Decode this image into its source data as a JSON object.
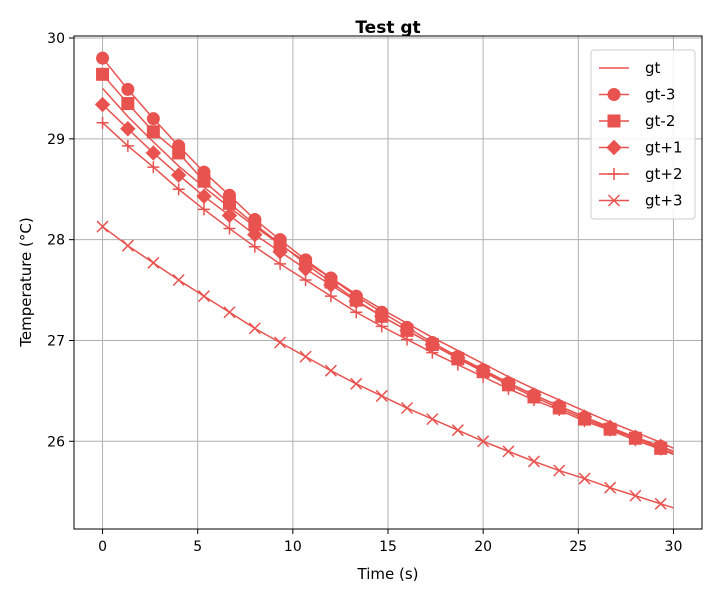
{
  "chart_data": {
    "type": "line",
    "title": "Test gt",
    "xlabel": "Time (s)",
    "ylabel": "Temperature (°C)",
    "xlim": [
      -1.5,
      31.5
    ],
    "ylim": [
      25.13,
      30.02
    ],
    "xticks": [
      0,
      5,
      10,
      15,
      20,
      25,
      30
    ],
    "yticks": [
      26,
      27,
      28,
      29,
      30
    ],
    "grid": true,
    "legend_position": "top-right",
    "line_color": "#e8524f",
    "marker_x": [
      0,
      1.33,
      2.67,
      4,
      5.33,
      6.67,
      8,
      9.33,
      10.67,
      12,
      13.33,
      14.67,
      16,
      17.33,
      18.67,
      20,
      21.33,
      22.67,
      24,
      25.33,
      26.67,
      28,
      29.33
    ],
    "series": [
      {
        "name": "gt",
        "marker": "none",
        "x": [
          0,
          1.33,
          2.67,
          4,
          5.33,
          6.67,
          8,
          9.33,
          10.67,
          12,
          13.33,
          14.67,
          16,
          17.33,
          18.67,
          20,
          21.33,
          22.67,
          24,
          25.33,
          26.67,
          28,
          29.33,
          30
        ],
        "values": [
          29.5,
          29.22,
          28.97,
          28.73,
          28.52,
          28.32,
          28.13,
          27.95,
          27.78,
          27.62,
          27.46,
          27.31,
          27.17,
          27.03,
          26.9,
          26.77,
          26.64,
          26.52,
          26.41,
          26.3,
          26.19,
          26.09,
          25.99,
          25.93
        ]
      },
      {
        "name": "gt-3",
        "marker": "circle",
        "x": [
          0,
          1.33,
          2.67,
          4,
          5.33,
          6.67,
          8,
          9.33,
          10.67,
          12,
          13.33,
          14.67,
          16,
          17.33,
          18.67,
          20,
          21.33,
          22.67,
          24,
          25.33,
          26.67,
          28,
          29.33,
          30
        ],
        "values": [
          29.8,
          29.49,
          29.2,
          28.93,
          28.67,
          28.44,
          28.2,
          28.0,
          27.8,
          27.62,
          27.44,
          27.28,
          27.13,
          26.98,
          26.84,
          26.71,
          26.58,
          26.46,
          26.35,
          26.24,
          26.13,
          26.04,
          25.95,
          25.9
        ]
      },
      {
        "name": "gt-2",
        "marker": "square",
        "x": [
          0,
          1.33,
          2.67,
          4,
          5.33,
          6.67,
          8,
          9.33,
          10.67,
          12,
          13.33,
          14.67,
          16,
          17.33,
          18.67,
          20,
          21.33,
          22.67,
          24,
          25.33,
          26.67,
          28,
          29.33,
          30
        ],
        "values": [
          29.64,
          29.35,
          29.07,
          28.86,
          28.58,
          28.36,
          28.15,
          27.96,
          27.76,
          27.58,
          27.4,
          27.24,
          27.1,
          26.96,
          26.82,
          26.69,
          26.56,
          26.44,
          26.33,
          26.22,
          26.12,
          26.03,
          25.93,
          25.88
        ]
      },
      {
        "name": "gt+1",
        "marker": "diamond",
        "x": [
          0,
          1.33,
          2.67,
          4,
          5.33,
          6.67,
          8,
          9.33,
          10.67,
          12,
          13.33,
          14.67,
          16,
          17.33,
          18.67,
          20,
          21.33,
          22.67,
          24,
          25.33,
          26.67,
          28,
          29.33,
          30
        ],
        "values": [
          29.34,
          29.1,
          28.86,
          28.64,
          28.43,
          28.24,
          28.05,
          27.88,
          27.71,
          27.55,
          27.39,
          27.24,
          27.1,
          26.96,
          26.83,
          26.7,
          26.58,
          26.46,
          26.35,
          26.24,
          26.14,
          26.04,
          25.95,
          25.9
        ]
      },
      {
        "name": "gt+2",
        "marker": "plus",
        "x": [
          0,
          1.33,
          2.67,
          4,
          5.33,
          6.67,
          8,
          9.33,
          10.67,
          12,
          13.33,
          14.67,
          16,
          17.33,
          18.67,
          20,
          21.33,
          22.67,
          24,
          25.33,
          26.67,
          28,
          29.33,
          30
        ],
        "values": [
          29.16,
          28.93,
          28.72,
          28.5,
          28.3,
          28.11,
          27.93,
          27.76,
          27.6,
          27.44,
          27.28,
          27.14,
          27.01,
          26.88,
          26.76,
          26.64,
          26.52,
          26.41,
          26.31,
          26.2,
          26.11,
          26.01,
          25.92,
          25.87
        ]
      },
      {
        "name": "gt+3",
        "marker": "x",
        "x": [
          0,
          1.33,
          2.67,
          4,
          5.33,
          6.67,
          8,
          9.33,
          10.67,
          12,
          13.33,
          14.67,
          16,
          17.33,
          18.67,
          20,
          21.33,
          22.67,
          24,
          25.33,
          26.67,
          28,
          29.33,
          30
        ],
        "values": [
          28.13,
          27.94,
          27.77,
          27.6,
          27.44,
          27.28,
          27.12,
          26.98,
          26.84,
          26.7,
          26.57,
          26.45,
          26.33,
          26.22,
          26.11,
          26.0,
          25.9,
          25.8,
          25.71,
          25.63,
          25.54,
          25.46,
          25.38,
          25.34
        ]
      }
    ]
  }
}
